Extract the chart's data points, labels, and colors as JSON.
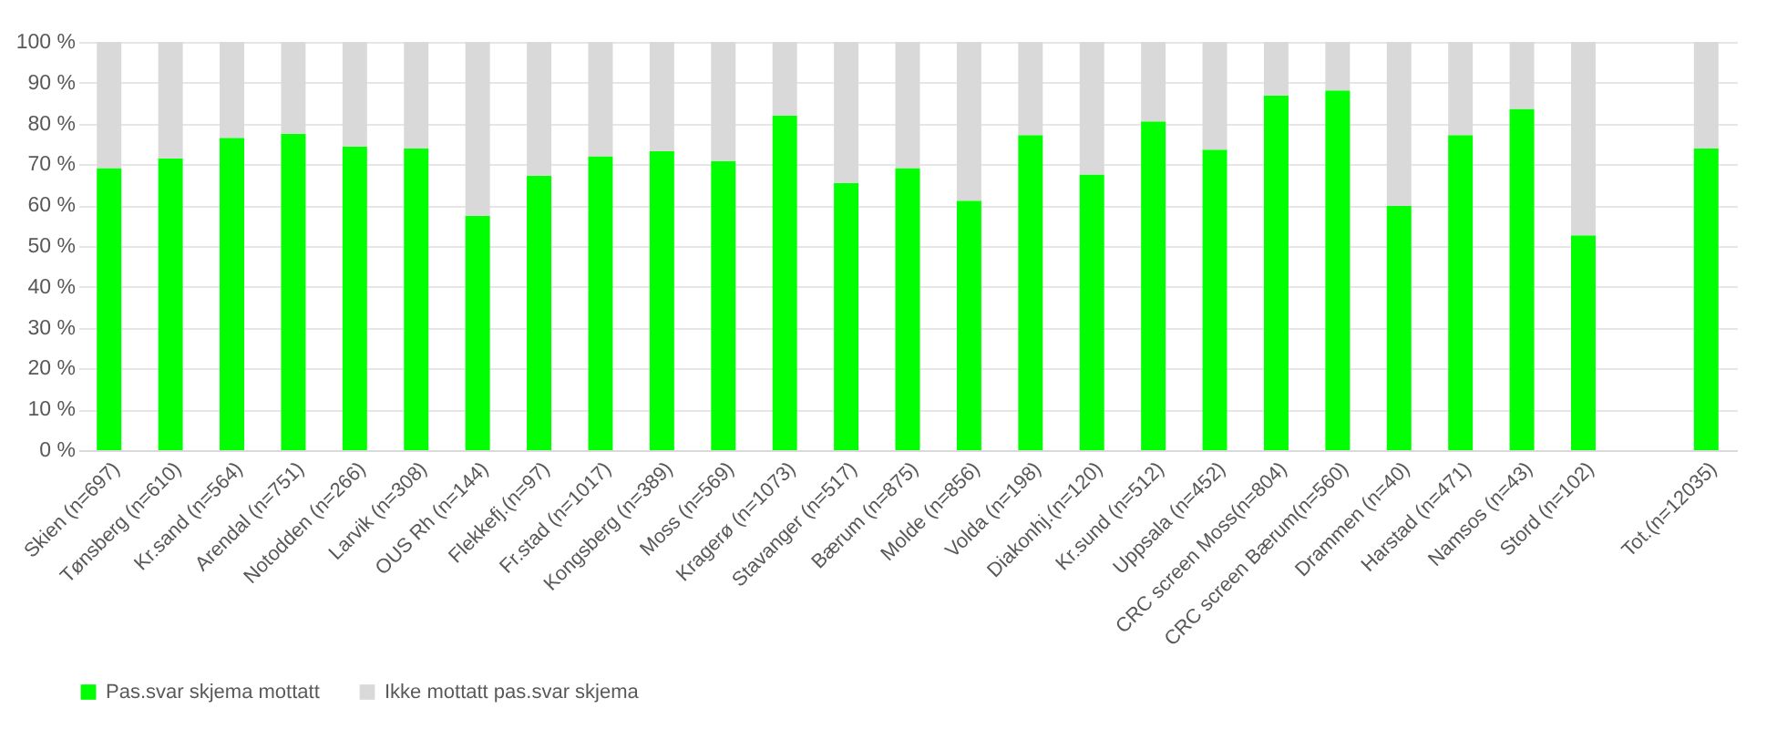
{
  "chart_data": {
    "type": "bar",
    "stacked": true,
    "categories": [
      "Skien (n=697)",
      "Tønsberg (n=610)",
      "Kr.sand (n=564)",
      "Arendal (n=751)",
      "Notodden (n=266)",
      "Larvik (n=308)",
      "OUS Rh (n=144)",
      "Flekkefj.(n=97)",
      "Fr.stad (n=1017)",
      "Kongsberg (n=389)",
      "Moss (n=569)",
      "Kragerø (n=1073)",
      "Stavanger (n=517)",
      "Bærum (n=875)",
      "Molde (n=856)",
      "Volda (n=198)",
      "Diakonhj.(n=120)",
      "Kr.sund (n=512)",
      "Uppsala (n=452)",
      "CRC screen Moss(n=804)",
      "CRC screen Bærum(n=560)",
      "Drammen (n=40)",
      "Harstad (n=471)",
      "Namsos (n=43)",
      "Stord (n=102)",
      null,
      "Tot.(n=12035)"
    ],
    "series": [
      {
        "name": "Pas.svar skjema mottatt",
        "color": "#00ff00",
        "values": [
          69.1,
          71.5,
          76.5,
          77.5,
          74.4,
          73.9,
          57.4,
          67.2,
          72.0,
          73.2,
          70.8,
          82.0,
          65.4,
          69.1,
          61.1,
          77.2,
          67.5,
          80.5,
          73.6,
          86.9,
          88.1,
          59.8,
          77.2,
          83.6,
          52.6,
          null,
          73.9
        ]
      },
      {
        "name": "Ikke mottatt pas.svar skjema",
        "color": "#d9d9d9",
        "values": [
          30.9,
          28.5,
          23.5,
          22.5,
          25.6,
          26.1,
          42.6,
          32.8,
          28.0,
          26.8,
          29.2,
          18.0,
          34.6,
          30.9,
          38.9,
          22.8,
          32.5,
          19.5,
          26.4,
          13.1,
          11.9,
          40.2,
          22.8,
          16.4,
          47.4,
          null,
          26.1
        ]
      }
    ],
    "ylim": [
      0,
      100
    ],
    "yticks": [
      {
        "value": 0,
        "label": "0 %"
      },
      {
        "value": 10,
        "label": "10 %"
      },
      {
        "value": 20,
        "label": "20 %"
      },
      {
        "value": 30,
        "label": "30 %"
      },
      {
        "value": 40,
        "label": "40 %"
      },
      {
        "value": 50,
        "label": "50 %"
      },
      {
        "value": 60,
        "label": "60 %"
      },
      {
        "value": 70,
        "label": "70 %"
      },
      {
        "value": 80,
        "label": "80 %"
      },
      {
        "value": 90,
        "label": "90 %"
      },
      {
        "value": 100,
        "label": "100 %"
      }
    ],
    "grid": "y",
    "legend": "bottom"
  }
}
